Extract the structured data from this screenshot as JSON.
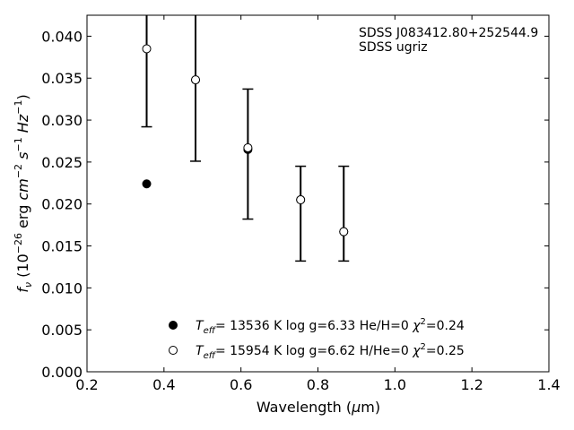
{
  "chart_data": {
    "type": "scatter",
    "xlabel": "Wavelength (μm)",
    "ylabel": "f_ν (10^-26 erg cm^-2 s^-1 Hz^-1)",
    "xlim": [
      0.2,
      1.4
    ],
    "ylim": [
      0.0,
      0.0425
    ],
    "x_ticks": [
      "0.2",
      "0.4",
      "0.6",
      "0.8",
      "1.0",
      "1.2",
      "1.4"
    ],
    "y_ticks": [
      "0.000",
      "0.005",
      "0.010",
      "0.015",
      "0.020",
      "0.025",
      "0.030",
      "0.035",
      "0.040"
    ],
    "annotation": [
      "SDSS J083412.80+252544.9",
      "SDSS ugriz"
    ],
    "observed": {
      "x": [
        0.355,
        0.482,
        0.618,
        0.755,
        0.867
      ],
      "y": [
        0.0385,
        0.0348,
        0.0266,
        0.0205,
        0.0167
      ],
      "yerr_low": [
        0.0292,
        0.0251,
        0.0182,
        0.0132,
        0.0132
      ],
      "yerr_high": [
        0.0425,
        0.0425,
        0.0337,
        0.0245,
        0.0245
      ]
    },
    "series": [
      {
        "name": "T_eff= 13536 K  log g=6.33  He/H=0  χ2=0.24",
        "marker": "filled",
        "x": [
          0.355,
          0.482,
          0.618,
          0.755,
          0.867
        ],
        "y": [
          0.0224,
          0.0348,
          0.0265,
          0.0205,
          0.0167
        ]
      },
      {
        "name": "T_eff= 15954 K  log g=6.62  H/He=0  χ2=0.25",
        "marker": "open",
        "x": [
          0.355,
          0.482,
          0.618,
          0.755,
          0.867
        ],
        "y": [
          0.0385,
          0.0348,
          0.0267,
          0.0205,
          0.0167
        ]
      }
    ],
    "legend_placement": "bottom-center",
    "grid": false,
    "colors": {
      "marker": "#000000",
      "background": "#ffffff"
    }
  }
}
